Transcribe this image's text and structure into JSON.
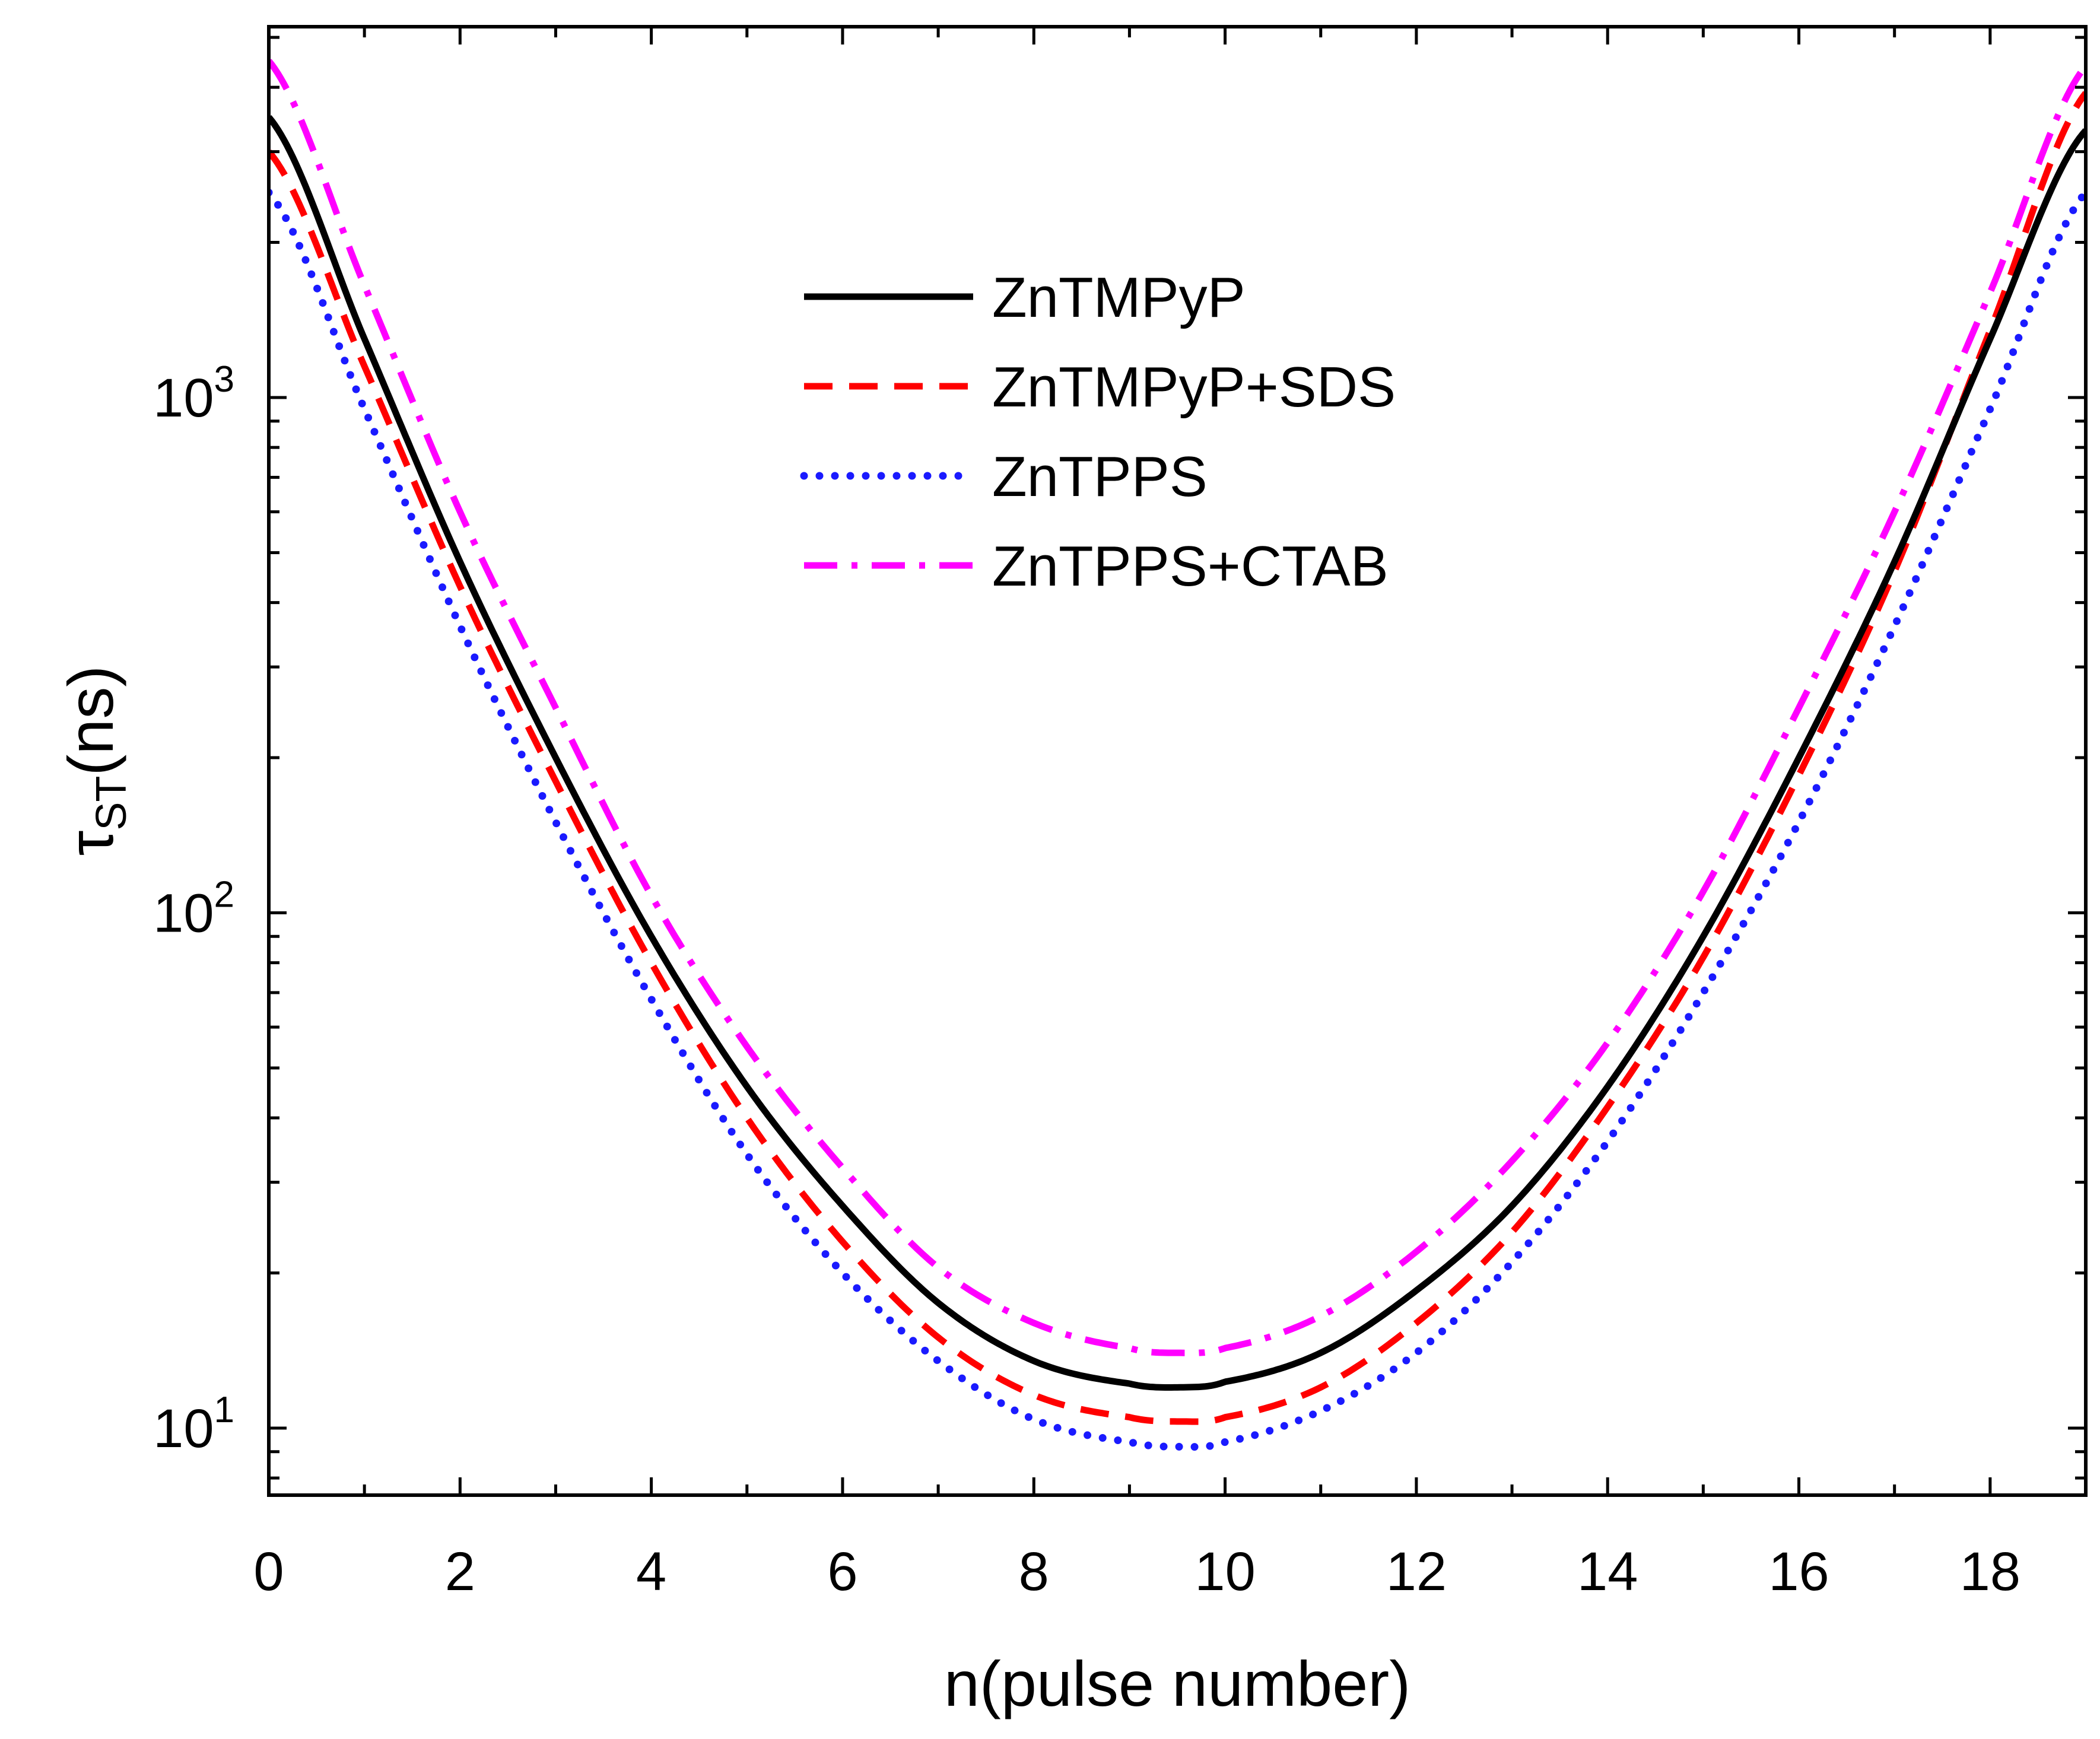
{
  "chart_data": {
    "type": "line",
    "title": "",
    "xlabel": "n(pulse number)",
    "ylabel_main": "τ",
    "ylabel_sub": "ST",
    "ylabel_unit": "(ns)",
    "xlim": [
      0,
      19
    ],
    "ylim": [
      7.5,
      5000
    ],
    "yscale": "log",
    "x_ticks": [
      0,
      2,
      4,
      6,
      8,
      10,
      12,
      14,
      16,
      18
    ],
    "x_tick_labels": [
      "0",
      "2",
      "4",
      "6",
      "8",
      "10",
      "12",
      "14",
      "16",
      "18"
    ],
    "y_ticks": [
      {
        "value": 10,
        "base": "10",
        "exp": "1"
      },
      {
        "value": 100,
        "base": "10",
        "exp": "2"
      },
      {
        "value": 1000,
        "base": "10",
        "exp": "3"
      }
    ],
    "legend_position": "top-center",
    "series": [
      {
        "name": "ZnTMPyP",
        "color": "#000000",
        "style": "solid",
        "minimum": {
          "n": 9.55,
          "tau": 12
        },
        "endpoints": {
          "left": 3500,
          "right": 3300
        },
        "x": [
          0,
          1,
          2,
          3,
          4,
          5,
          6,
          7,
          8,
          9,
          9.55,
          10,
          11,
          12,
          13,
          14,
          15,
          16,
          17,
          18,
          19
        ],
        "y": [
          3500,
          1300,
          480,
          200,
          90,
          46,
          27,
          17.5,
          13.5,
          12.2,
          12,
          12.3,
          14,
          18.5,
          27,
          46,
          90,
          200,
          480,
          1300,
          3300
        ]
      },
      {
        "name": "ZnTMPyP+SDS",
        "color": "#ff0000",
        "style": "dashed",
        "minimum": {
          "n": 9.55,
          "tau": 10.3
        },
        "endpoints": {
          "left": 3000,
          "right": 3900
        },
        "x": [
          0,
          1,
          2,
          3,
          4,
          5,
          6,
          7,
          8,
          9,
          9.55,
          10,
          11,
          12,
          13,
          14,
          15,
          16,
          17,
          18,
          19
        ],
        "y": [
          3000,
          1150,
          430,
          180,
          80,
          40,
          23,
          15,
          11.6,
          10.5,
          10.3,
          10.5,
          12,
          16,
          24,
          42,
          82,
          185,
          460,
          1350,
          3900
        ]
      },
      {
        "name": "ZnTPPS",
        "color": "#1a1aff",
        "style": "dotted",
        "minimum": {
          "n": 9.55,
          "tau": 9.2
        },
        "endpoints": {
          "left": 2500,
          "right": 2500
        },
        "x": [
          0,
          1,
          2,
          3,
          4,
          5,
          6,
          7,
          8,
          9,
          9.55,
          10,
          11,
          12,
          13,
          14,
          15,
          16,
          17,
          18,
          19
        ],
        "y": [
          2500,
          950,
          360,
          150,
          68,
          34,
          20,
          13.5,
          10.4,
          9.4,
          9.2,
          9.4,
          10.8,
          14,
          21,
          36,
          70,
          150,
          360,
          950,
          2500
        ]
      },
      {
        "name": "ZnTPPS+CTAB",
        "color": "#ff00ff",
        "style": "dashdot",
        "minimum": {
          "n": 9.5,
          "tau": 14
        },
        "endpoints": {
          "left": 4500,
          "right": 4400
        },
        "x": [
          0,
          1,
          2,
          3,
          4,
          5,
          6,
          7,
          8,
          9,
          9.5,
          10,
          11,
          12,
          13,
          14,
          15,
          16,
          17,
          18,
          19
        ],
        "y": [
          4500,
          1650,
          600,
          250,
          108,
          55,
          32,
          20.5,
          16,
          14.3,
          14,
          14.3,
          16.5,
          22,
          33,
          56,
          110,
          250,
          600,
          1600,
          4400
        ]
      }
    ]
  }
}
